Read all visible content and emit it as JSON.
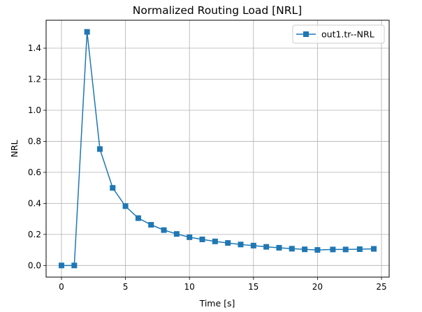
{
  "chart_data": {
    "type": "line",
    "title": "Normalized Routing Load [NRL]",
    "xlabel": "Time [s]",
    "ylabel": "NRL",
    "xlim": [
      -1.2,
      25.6
    ],
    "ylim": [
      -0.075,
      1.58
    ],
    "xticks": [
      0,
      5,
      10,
      15,
      20,
      25
    ],
    "yticks": [
      0.0,
      0.2,
      0.4,
      0.6,
      0.8,
      1.0,
      1.2,
      1.4
    ],
    "xtick_labels": [
      "0",
      "5",
      "10",
      "15",
      "20",
      "25"
    ],
    "ytick_labels": [
      "0.0",
      "0.2",
      "0.4",
      "0.6",
      "0.8",
      "1.0",
      "1.2",
      "1.4"
    ],
    "grid": true,
    "legend_position": "top-right",
    "series": [
      {
        "name": "out1.tr--NRL",
        "color": "#1f77b4",
        "marker": "square",
        "x": [
          0,
          1,
          2,
          3,
          4,
          5,
          6,
          7,
          8,
          9,
          10,
          11,
          12,
          13,
          14,
          15,
          16,
          17,
          18,
          19,
          20,
          21.2,
          22.2,
          23.3,
          24.4
        ],
        "y": [
          0.0,
          0.0,
          1.505,
          0.75,
          0.5,
          0.382,
          0.305,
          0.262,
          0.228,
          0.203,
          0.182,
          0.168,
          0.155,
          0.145,
          0.135,
          0.128,
          0.12,
          0.114,
          0.108,
          0.104,
          0.1,
          0.103,
          0.103,
          0.105,
          0.107
        ]
      }
    ]
  }
}
